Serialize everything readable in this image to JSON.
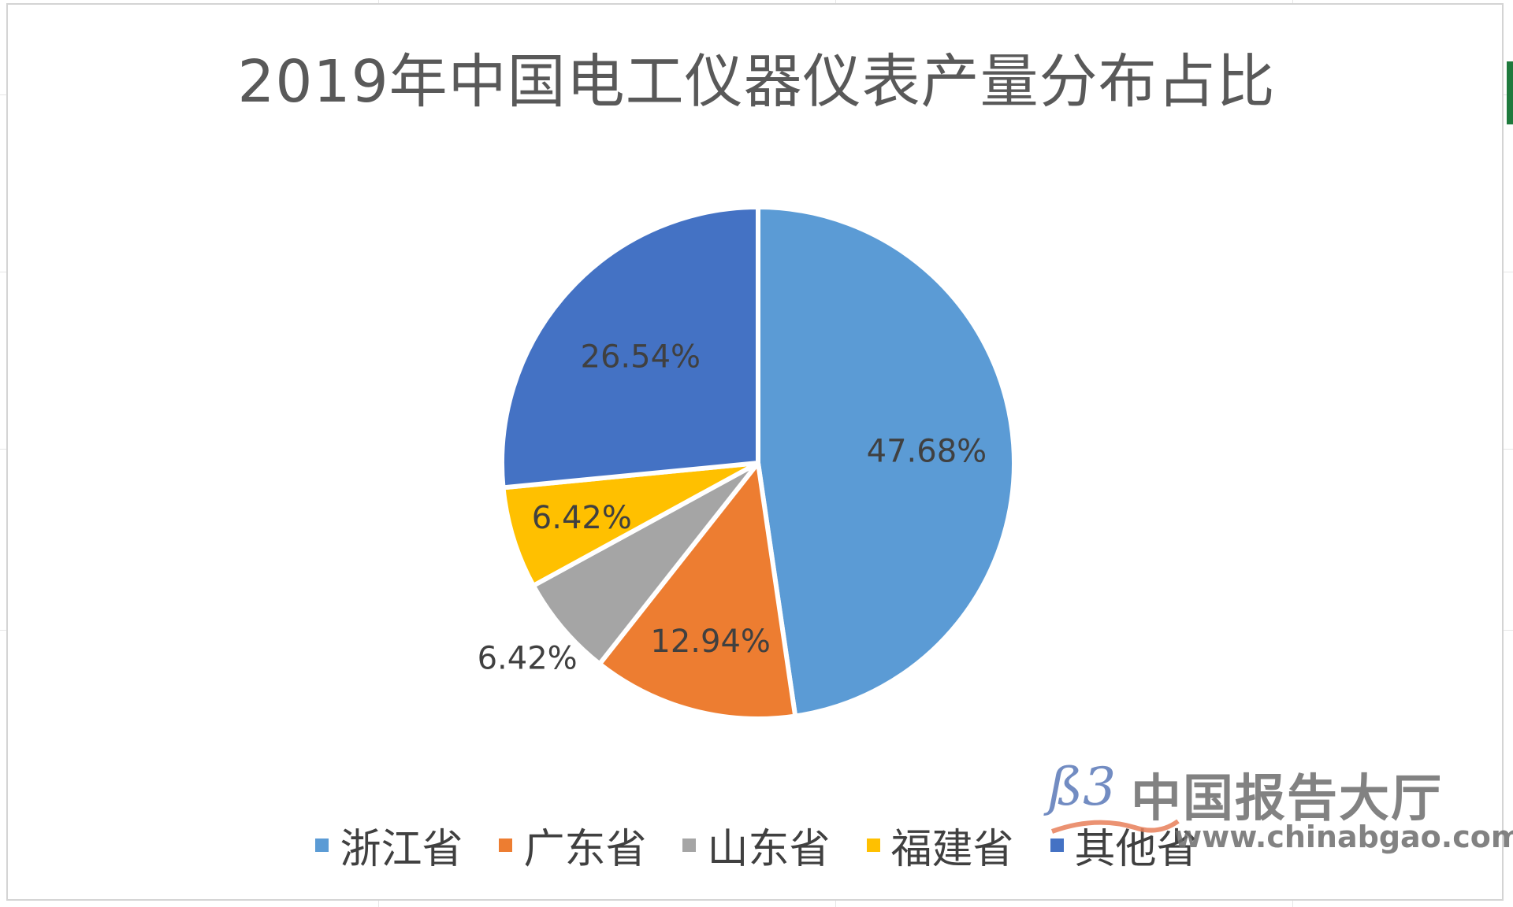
{
  "chart_data": {
    "type": "pie",
    "title": "2019年中国电工仪器仪表产量分布占比",
    "categories": [
      "浙江省",
      "广东省",
      "山东省",
      "福建省",
      "其他省"
    ],
    "values": [
      47.68,
      12.94,
      6.42,
      6.42,
      26.54
    ],
    "labels": [
      "47.68%",
      "12.94%",
      "6.42%",
      "6.42%",
      "26.54%"
    ],
    "colors": [
      "#5b9bd5",
      "#ed7d31",
      "#a5a5a5",
      "#ffc000",
      "#4472c4"
    ],
    "legend_position": "bottom"
  },
  "watermark": {
    "name": "中国报告大厅",
    "url": "www.chinabgao.com"
  }
}
